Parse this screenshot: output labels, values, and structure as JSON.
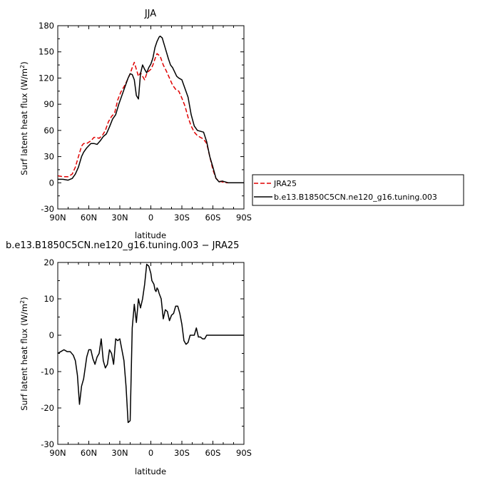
{
  "chart_data": [
    {
      "type": "line",
      "title": "JJA",
      "xlabel": "latitude",
      "ylabel": "Surf latent heat flux (W/m²)",
      "xlim": [
        90,
        -90
      ],
      "ylim": [
        -30,
        180
      ],
      "yticks": [
        -30,
        0,
        30,
        60,
        90,
        120,
        150,
        180
      ],
      "xticks": [
        {
          "value": 90,
          "label": "90N"
        },
        {
          "value": 60,
          "label": "60N"
        },
        {
          "value": 30,
          "label": "30N"
        },
        {
          "value": 0,
          "label": "0"
        },
        {
          "value": -30,
          "label": "30S"
        },
        {
          "value": -60,
          "label": "60S"
        },
        {
          "value": -90,
          "label": "90S"
        }
      ],
      "series": [
        {
          "name": "JRA25",
          "color": "#e00000",
          "dash": "dashed",
          "x": [
            90,
            85,
            80,
            76,
            73,
            70,
            67,
            65,
            62,
            58,
            55,
            53,
            50,
            47,
            44,
            41,
            38,
            35,
            32,
            29,
            26,
            23,
            20,
            18,
            16,
            14,
            12,
            10,
            8,
            6,
            4,
            2,
            0,
            -2,
            -4,
            -6,
            -9,
            -12,
            -15,
            -18,
            -21,
            -24,
            -27,
            -30,
            -33,
            -36,
            -39,
            -42,
            -45,
            -48,
            -51,
            -54,
            -57,
            -60,
            -63,
            -66,
            -69,
            -72,
            -75,
            -78,
            -81,
            -84,
            -87,
            -90
          ],
          "y": [
            8,
            7,
            7,
            10,
            18,
            30,
            42,
            45,
            45,
            48,
            52,
            52,
            51,
            54,
            60,
            70,
            76,
            80,
            95,
            104,
            110,
            117,
            125,
            132,
            138,
            130,
            122,
            126,
            122,
            118,
            125,
            128,
            130,
            135,
            142,
            148,
            145,
            135,
            128,
            120,
            112,
            107,
            105,
            97,
            88,
            75,
            65,
            58,
            54,
            52,
            50,
            45,
            30,
            15,
            5,
            2,
            1,
            0,
            0,
            0,
            0,
            0,
            0,
            0
          ]
        },
        {
          "name": "b.e13.B1850C5CN.ne120_g16.tuning.003",
          "color": "#000000",
          "dash": "solid",
          "x": [
            90,
            85,
            80,
            76,
            73,
            70,
            67,
            65,
            62,
            58,
            55,
            52,
            49,
            46,
            43,
            40,
            37,
            34,
            31,
            28,
            25,
            22,
            20,
            18,
            16,
            14,
            12,
            10,
            8,
            6,
            4,
            2,
            0,
            -2,
            -4,
            -6,
            -8,
            -9,
            -11,
            -13,
            -15,
            -17,
            -19,
            -21,
            -23,
            -25,
            -27,
            -30,
            -33,
            -36,
            -39,
            -42,
            -45,
            -48,
            -51,
            -54,
            -57,
            -60,
            -63,
            -66,
            -69,
            -72,
            -75,
            -78,
            -81,
            -84,
            -87,
            -90
          ],
          "y": [
            4,
            4,
            3,
            5,
            10,
            18,
            30,
            35,
            40,
            45,
            45,
            44,
            48,
            53,
            56,
            64,
            73,
            78,
            90,
            100,
            110,
            120,
            125,
            124,
            118,
            100,
            96,
            125,
            135,
            130,
            126,
            132,
            136,
            143,
            155,
            162,
            167,
            168,
            166,
            158,
            150,
            142,
            135,
            132,
            127,
            122,
            120,
            118,
            108,
            98,
            78,
            65,
            60,
            59,
            58,
            47,
            30,
            18,
            5,
            1,
            2,
            1,
            0,
            0,
            0,
            0,
            0,
            0
          ]
        }
      ],
      "legend": {
        "placement": "right"
      }
    },
    {
      "type": "line",
      "title": "b.e13.B1850C5CN.ne120_g16.tuning.003 − JRA25",
      "xlabel": "latitude",
      "ylabel": "Surf latent heat flux (W/m²)",
      "xlim": [
        90,
        -90
      ],
      "ylim": [
        -30,
        20
      ],
      "yticks": [
        -30,
        -20,
        -10,
        0,
        10,
        20
      ],
      "xticks": [
        {
          "value": 90,
          "label": "90N"
        },
        {
          "value": 60,
          "label": "60N"
        },
        {
          "value": 30,
          "label": "30N"
        },
        {
          "value": 0,
          "label": "0"
        },
        {
          "value": -30,
          "label": "30S"
        },
        {
          "value": -60,
          "label": "60S"
        },
        {
          "value": -90,
          "label": "90S"
        }
      ],
      "series": [
        {
          "name": "",
          "color": "#000000",
          "dash": "solid",
          "x": [
            90,
            87,
            84,
            81,
            78,
            75,
            73,
            71,
            69,
            67,
            65,
            62,
            60,
            58,
            56,
            54,
            52,
            50,
            48,
            46,
            44,
            42,
            40,
            38,
            36,
            34,
            32,
            30,
            28,
            26,
            24,
            22,
            20,
            18,
            16,
            14,
            12,
            10,
            8,
            6,
            4,
            2,
            0,
            -1,
            -2,
            -3,
            -4,
            -5,
            -6,
            -7,
            -8,
            -10,
            -12,
            -14,
            -16,
            -18,
            -20,
            -22,
            -24,
            -26,
            -28,
            -30,
            -32,
            -34,
            -36,
            -38,
            -40,
            -42,
            -44,
            -46,
            -48,
            -50,
            -52,
            -54,
            -56,
            -58,
            -60,
            -62,
            -64,
            -66,
            -68,
            -70,
            -72,
            -74,
            -76,
            -78,
            -80,
            -82,
            -84,
            -86,
            -88,
            -90
          ],
          "y": [
            -5,
            -4.5,
            -4,
            -4.5,
            -4.5,
            -5.5,
            -7,
            -11,
            -19,
            -14,
            -12,
            -6,
            -4,
            -4,
            -6.5,
            -8,
            -6,
            -5,
            -1,
            -7,
            -9,
            -8,
            -4,
            -5,
            -8,
            -1,
            -1.5,
            -1,
            -4,
            -7,
            -14,
            -24,
            -23.5,
            2,
            8.5,
            3.5,
            10,
            7.5,
            10,
            14,
            19.5,
            19,
            17,
            15,
            14.5,
            14,
            12.5,
            12,
            13,
            12.5,
            11.5,
            10,
            4.5,
            7,
            6.5,
            4,
            5.5,
            6,
            8,
            8,
            6,
            3,
            -1.5,
            -2.5,
            -2,
            0,
            0,
            0,
            2,
            -0.5,
            -0.5,
            -1,
            -1,
            0,
            0,
            0,
            0,
            0,
            0,
            0,
            0,
            0,
            0,
            0,
            0,
            0,
            0,
            0,
            0,
            0,
            0,
            0
          ]
        }
      ]
    }
  ]
}
